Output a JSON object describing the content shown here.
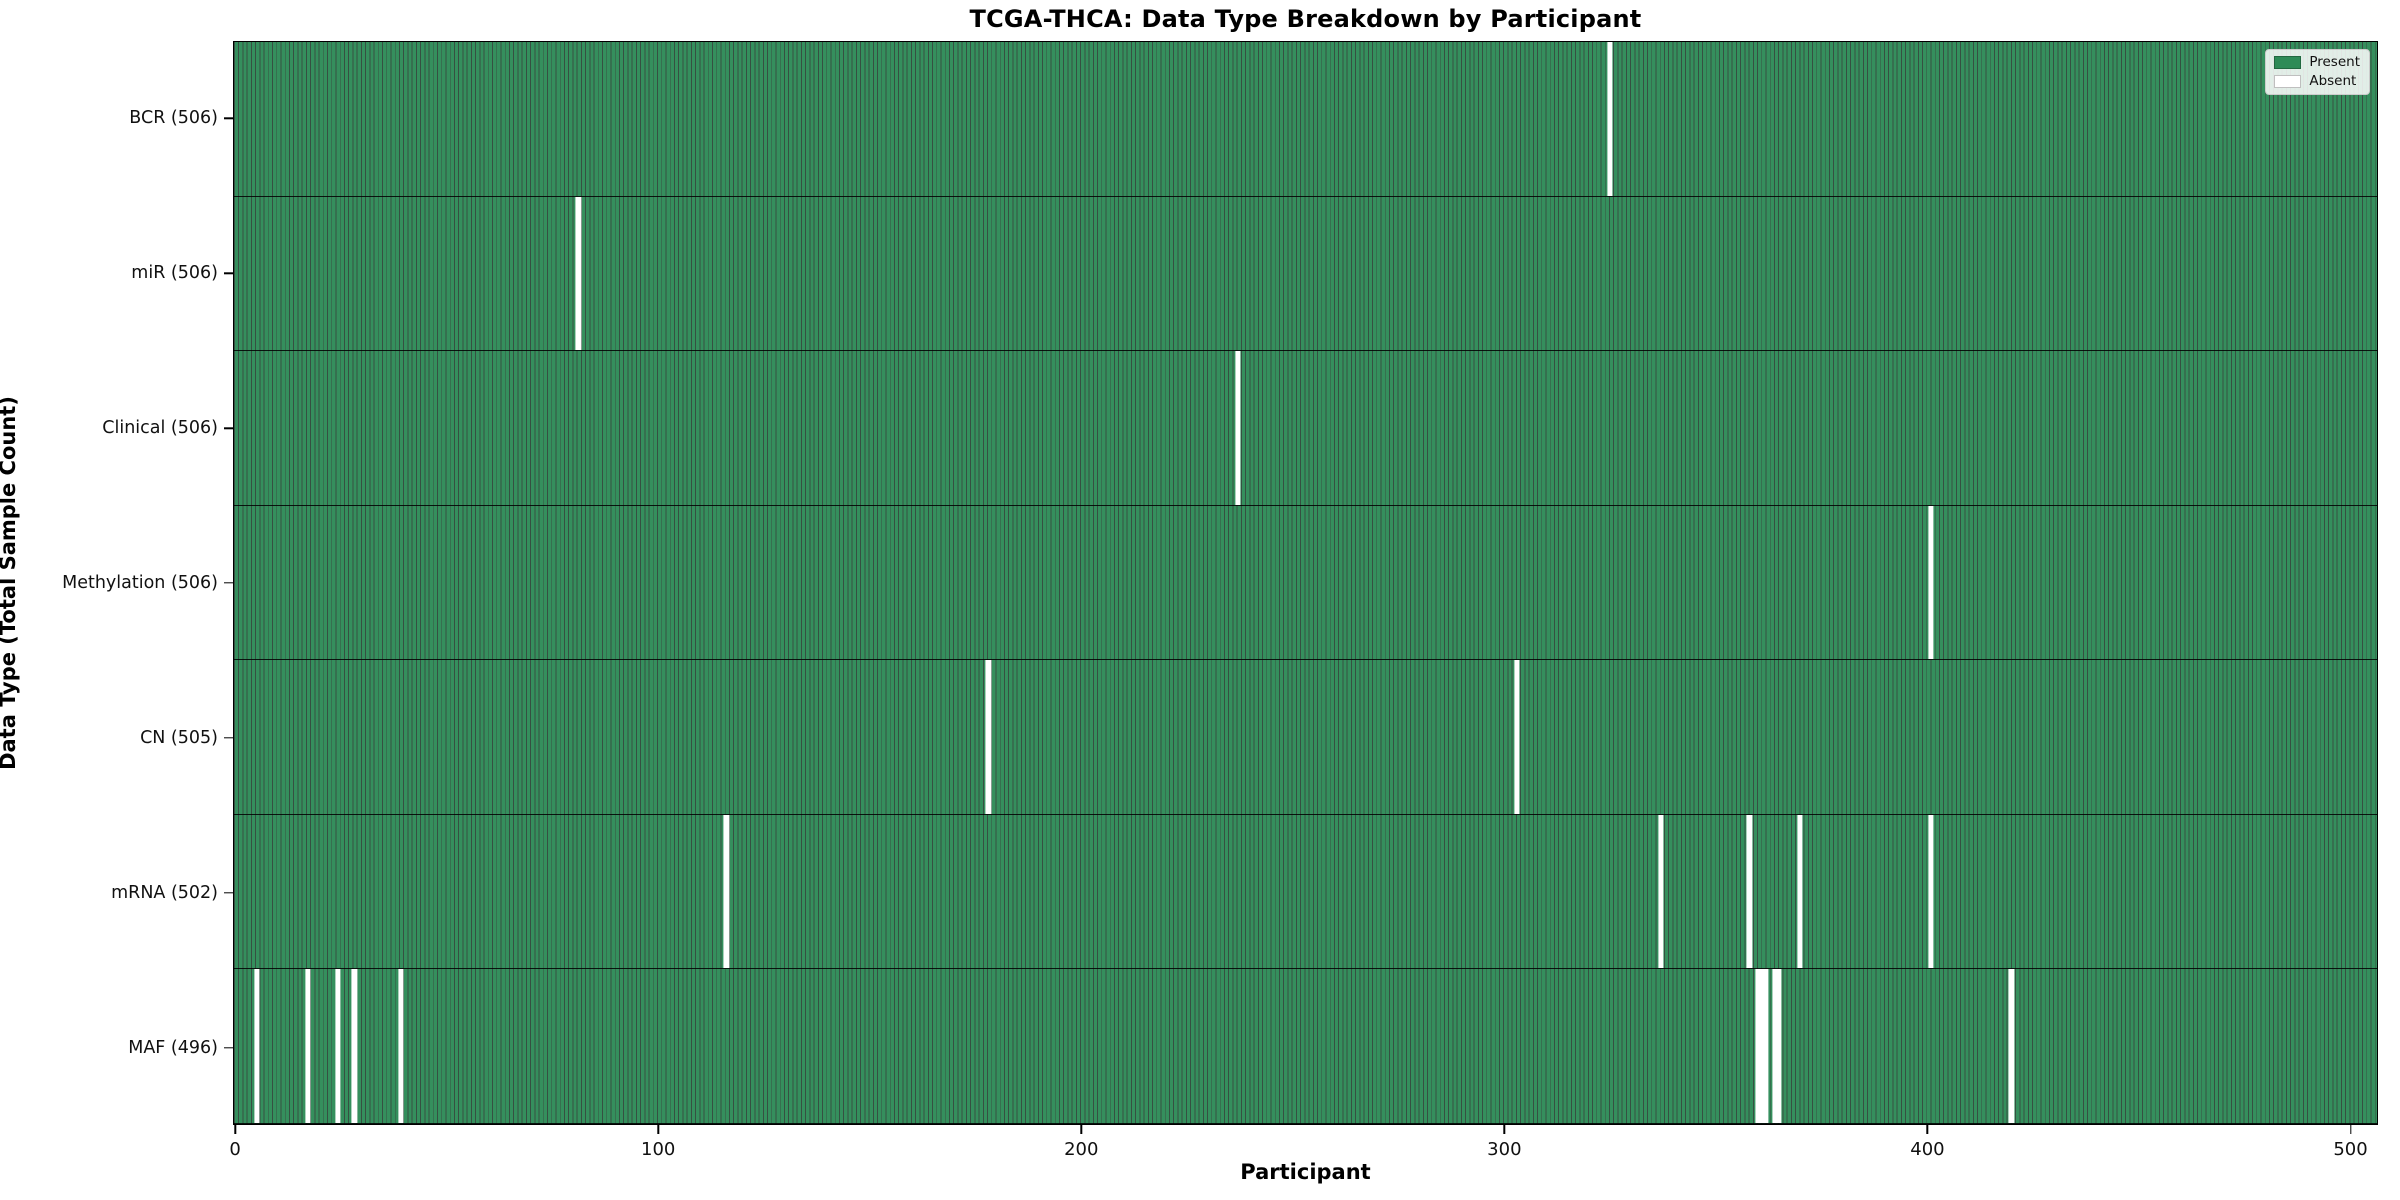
{
  "title": "TCGA-THCA: Data Type Breakdown by Participant",
  "axes": {
    "xlabel": "Participant",
    "ylabel": "Data Type (Total Sample Count)"
  },
  "legend": {
    "items": [
      {
        "label": "Present",
        "color": "#2e8b57"
      },
      {
        "label": "Absent",
        "color": "#ffffff"
      }
    ]
  },
  "colors": {
    "present": "#2e8b57",
    "absent": "#ffffff",
    "bar_edge": "#0a2a18",
    "background": "#ffffff"
  },
  "chart_data": {
    "type": "heatmap",
    "title": "TCGA-THCA: Data Type Breakdown by Participant",
    "xlabel": "Participant",
    "ylabel": "Data Type (Total Sample Count)",
    "n_participants": 507,
    "x_ticks": [
      0,
      100,
      200,
      300,
      400,
      500
    ],
    "xlim": [
      0,
      506
    ],
    "legend_position": "upper right",
    "value_legend": {
      "present": "Present",
      "absent": "Absent"
    },
    "rows": [
      {
        "label": "BCR (506)",
        "data_type": "BCR",
        "present_count": 506,
        "absent_participants": [
          325
        ]
      },
      {
        "label": "miR (506)",
        "data_type": "miR",
        "present_count": 506,
        "absent_participants": [
          81
        ]
      },
      {
        "label": "Clinical (506)",
        "data_type": "Clinical",
        "present_count": 506,
        "absent_participants": [
          237
        ]
      },
      {
        "label": "Methylation (506)",
        "data_type": "Methylation",
        "present_count": 506,
        "absent_participants": [
          401
        ]
      },
      {
        "label": "CN (505)",
        "data_type": "CN",
        "present_count": 505,
        "absent_participants": [
          178,
          303
        ]
      },
      {
        "label": "mRNA (502)",
        "data_type": "mRNA",
        "present_count": 502,
        "absent_participants": [
          116,
          337,
          358,
          370,
          401
        ]
      },
      {
        "label": "MAF (496)",
        "data_type": "MAF",
        "present_count": 496,
        "absent_participants": [
          5,
          17,
          24,
          28,
          39,
          360,
          361,
          362,
          364,
          365,
          420
        ]
      }
    ]
  }
}
